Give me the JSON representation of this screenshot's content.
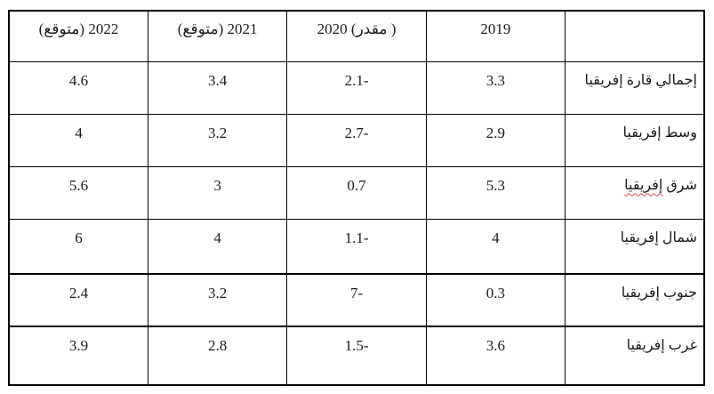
{
  "page": {
    "background_color": "#ffffff",
    "text_color": "#1a1a1a",
    "border_color": "#000000",
    "spellcheck_underline_color": "#d84a4a"
  },
  "table": {
    "description_note": "RTL table of African growth figures; negative values rendered with trailing minus as shown on screen",
    "header": {
      "region_label": "",
      "col_2019": "2019",
      "col_2020": "2020 (مقدر )",
      "col_2021": "2021 (متوقع)",
      "col_2022": "2022 (متوقع)"
    },
    "rows": [
      {
        "name_prefix": "إجمالي قارة إفريقيا",
        "name_marked": "",
        "y2019": "3.3",
        "y2020": "2.1-",
        "y2021": "3.4",
        "y2022": "4.6"
      },
      {
        "name_prefix": "وسط إفريقيا",
        "name_marked": "",
        "y2019": "2.9",
        "y2020": "2.7-",
        "y2021": "3.2",
        "y2022": "4"
      },
      {
        "name_prefix": "شرق ",
        "name_marked": "إفريقيا",
        "y2019": "5.3",
        "y2020": "0.7",
        "y2021": "3",
        "y2022": "5.6"
      },
      {
        "name_prefix": "شمال إفريقيا",
        "name_marked": "",
        "y2019": "4",
        "y2020": "1.1-",
        "y2021": "4",
        "y2022": "6"
      },
      {
        "name_prefix": "جنوب إفريقيا",
        "name_marked": "",
        "y2019": "0.3",
        "y2020": "7-",
        "y2021": "3.2",
        "y2022": "2.4"
      },
      {
        "name_prefix": "غرب إفريقيا",
        "name_marked": "",
        "y2019": "3.6",
        "y2020": "1.5-",
        "y2021": "2.8",
        "y2022": "3.9"
      }
    ]
  }
}
